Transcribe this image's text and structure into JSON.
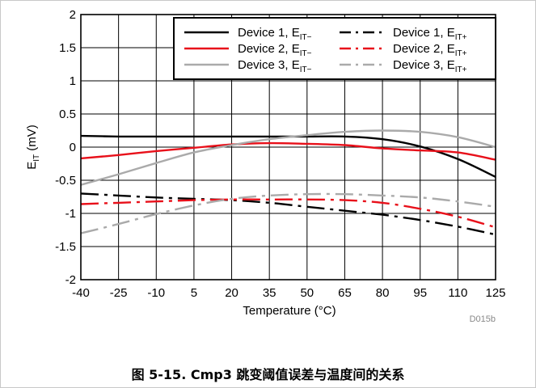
{
  "caption": "图 5-15. Cmp3 跳变阈值误差与温度间的关系",
  "chart_id": "D015b",
  "chart_data": {
    "type": "line",
    "xlabel": "Temperature (°C)",
    "ylabel": "EIT (mV)",
    "xlim": [
      -40,
      125
    ],
    "ylim": [
      -2,
      2
    ],
    "xticks": [
      -40,
      -25,
      -10,
      5,
      20,
      35,
      50,
      65,
      80,
      95,
      110,
      125
    ],
    "yticks": [
      2,
      1.5,
      1,
      0.5,
      0,
      -0.5,
      -1,
      -1.5,
      -2
    ],
    "ytick_labels": [
      "2",
      "1.5",
      "1",
      "0.5",
      "0",
      "-0.5",
      "-1",
      "-1.5",
      "-2"
    ],
    "grid": true,
    "legend": "top-right",
    "series": [
      {
        "name": "Device 1, EIT−",
        "color": "#000000",
        "dash": "solid",
        "x": [
          -40,
          -25,
          -10,
          5,
          20,
          35,
          50,
          65,
          80,
          95,
          110,
          125
        ],
        "y": [
          0.17,
          0.16,
          0.16,
          0.16,
          0.16,
          0.16,
          0.16,
          0.16,
          0.12,
          0.01,
          -0.18,
          -0.45
        ]
      },
      {
        "name": "Device 2, EIT−",
        "color": "#e8101a",
        "dash": "solid",
        "x": [
          -40,
          -25,
          -10,
          5,
          20,
          35,
          50,
          65,
          80,
          95,
          110,
          125
        ],
        "y": [
          -0.17,
          -0.12,
          -0.06,
          -0.01,
          0.04,
          0.06,
          0.05,
          0.03,
          -0.02,
          -0.05,
          -0.08,
          -0.19
        ]
      },
      {
        "name": "Device 3, EIT−",
        "color": "#aaaaaa",
        "dash": "solid",
        "x": [
          -40,
          -25,
          -10,
          5,
          20,
          35,
          50,
          65,
          80,
          95,
          110,
          125
        ],
        "y": [
          -0.57,
          -0.41,
          -0.24,
          -0.08,
          0.03,
          0.12,
          0.18,
          0.23,
          0.25,
          0.23,
          0.15,
          0.0
        ]
      },
      {
        "name": "Device 1, EIT+",
        "color": "#000000",
        "dash": "dashdot",
        "x": [
          -40,
          -25,
          -10,
          5,
          20,
          35,
          50,
          65,
          80,
          95,
          110,
          125
        ],
        "y": [
          -0.7,
          -0.73,
          -0.76,
          -0.78,
          -0.8,
          -0.84,
          -0.9,
          -0.96,
          -1.02,
          -1.1,
          -1.2,
          -1.32
        ]
      },
      {
        "name": "Device 2, EIT+",
        "color": "#e8101a",
        "dash": "dashdot",
        "x": [
          -40,
          -25,
          -10,
          5,
          20,
          35,
          50,
          65,
          80,
          95,
          110,
          125
        ],
        "y": [
          -0.86,
          -0.84,
          -0.82,
          -0.8,
          -0.79,
          -0.79,
          -0.79,
          -0.8,
          -0.84,
          -0.93,
          -1.05,
          -1.21
        ]
      },
      {
        "name": "Device 3, EIT+",
        "color": "#aaaaaa",
        "dash": "dashdot",
        "x": [
          -40,
          -25,
          -10,
          5,
          20,
          35,
          50,
          65,
          80,
          95,
          110,
          125
        ],
        "y": [
          -1.3,
          -1.16,
          -1.01,
          -0.88,
          -0.78,
          -0.73,
          -0.71,
          -0.71,
          -0.73,
          -0.76,
          -0.82,
          -0.9
        ]
      }
    ]
  }
}
